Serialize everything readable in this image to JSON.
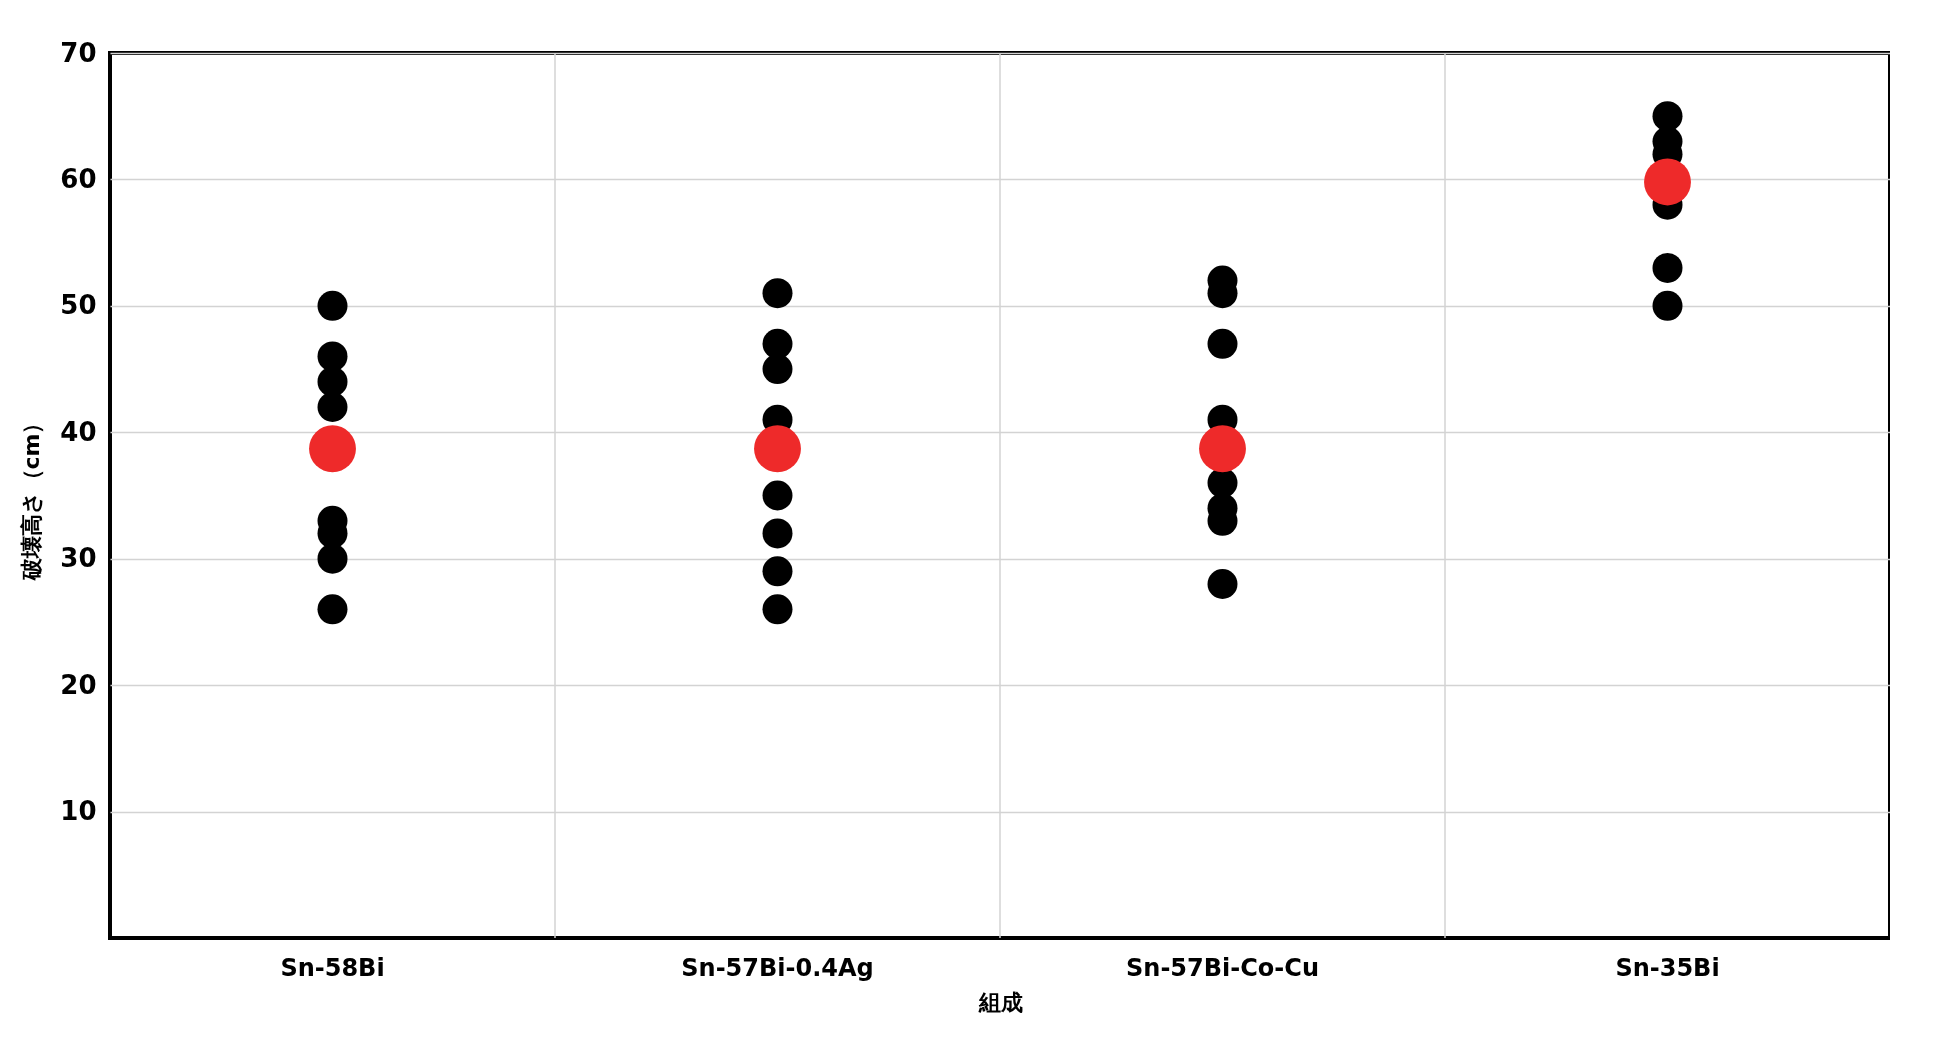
{
  "chart_data": {
    "type": "scatter",
    "xlabel": "組成",
    "ylabel": "破壊高さ（cm）",
    "categories": [
      "Sn-58Bi",
      "Sn-57Bi-0.4Ag",
      "Sn-57Bi-Co-Cu",
      "Sn-35Bi"
    ],
    "ylim": [
      0,
      70
    ],
    "yticks": [
      10,
      20,
      30,
      40,
      50,
      60,
      70
    ],
    "grid": true,
    "marker": "circle",
    "series": [
      {
        "color": "#000000",
        "x": [
          "Sn-58Bi",
          "Sn-58Bi",
          "Sn-58Bi",
          "Sn-58Bi",
          "Sn-58Bi",
          "Sn-58Bi",
          "Sn-58Bi",
          "Sn-58Bi",
          "Sn-58Bi",
          "Sn-57Bi-0.4Ag",
          "Sn-57Bi-0.4Ag",
          "Sn-57Bi-0.4Ag",
          "Sn-57Bi-0.4Ag",
          "Sn-57Bi-0.4Ag",
          "Sn-57Bi-0.4Ag",
          "Sn-57Bi-0.4Ag",
          "Sn-57Bi-0.4Ag",
          "Sn-57Bi-0.4Ag",
          "Sn-57Bi-Co-Cu",
          "Sn-57Bi-Co-Cu",
          "Sn-57Bi-Co-Cu",
          "Sn-57Bi-Co-Cu",
          "Sn-57Bi-Co-Cu",
          "Sn-57Bi-Co-Cu",
          "Sn-57Bi-Co-Cu",
          "Sn-57Bi-Co-Cu",
          "Sn-35Bi",
          "Sn-35Bi",
          "Sn-35Bi",
          "Sn-35Bi",
          "Sn-35Bi",
          "Sn-35Bi"
        ],
        "values": [
          50,
          46,
          44,
          42,
          null,
          33,
          32,
          30,
          26,
          51,
          47,
          45,
          41,
          null,
          35,
          32,
          29,
          26,
          52,
          51,
          47,
          41,
          36,
          34,
          33,
          28,
          65,
          63,
          62,
          58,
          53,
          50
        ]
      },
      {
        "color": "#ee2a2a",
        "x": [
          "Sn-58Bi",
          "Sn-57Bi-0.4Ag",
          "Sn-57Bi-Co-Cu",
          "Sn-35Bi"
        ],
        "values": [
          38.7,
          38.7,
          38.7,
          59.8
        ]
      }
    ]
  }
}
